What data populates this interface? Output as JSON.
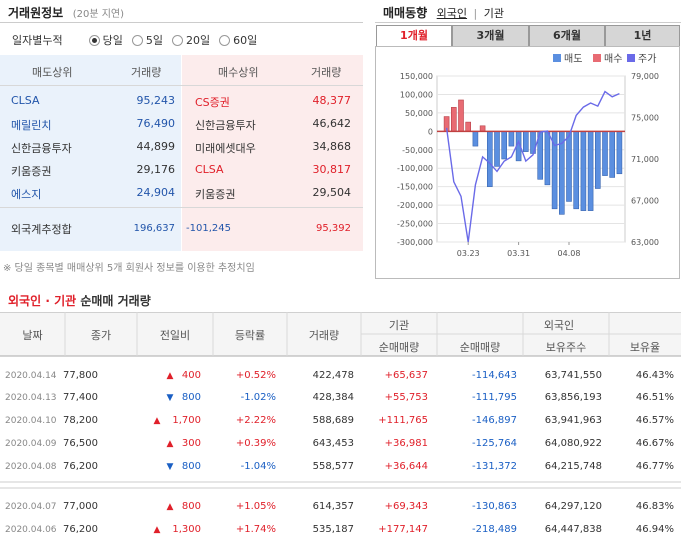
{
  "trade_info": {
    "title": "거래원정보",
    "delay": "(20분 지연)",
    "daily_label": "일자별누적",
    "periods": [
      "당일",
      "5일",
      "20일",
      "60일"
    ],
    "selected_period": 0,
    "headers": {
      "sell": "매도상위",
      "volume": "거래량",
      "buy": "매수상위",
      "volume2": "거래량"
    },
    "sell_top": [
      {
        "name": "CLSA",
        "volume": "95,243"
      },
      {
        "name": "메릴린치",
        "volume": "76,490"
      },
      {
        "name": "신한금융투자",
        "volume": "44,899"
      },
      {
        "name": "키움증권",
        "volume": "29,176"
      },
      {
        "name": "에스지",
        "volume": "24,904"
      }
    ],
    "buy_top": [
      {
        "name": "CS증권",
        "volume": "48,377"
      },
      {
        "name": "신한금융투자",
        "volume": "46,642"
      },
      {
        "name": "미래에셋대우",
        "volume": "34,868"
      },
      {
        "name": "CLSA",
        "volume": "30,817"
      },
      {
        "name": "키움증권",
        "volume": "29,504"
      }
    ],
    "foreign_total": {
      "label": "외국계추정합",
      "sell": "196,637",
      "diff": "-101,245",
      "buy": "95,392"
    },
    "note": "※ 당일 종목별 매매상위 5개 회원사 정보를 이용한 추정치임"
  },
  "trend": {
    "title": "매매동향",
    "links": [
      "외국인",
      "기관"
    ],
    "tabs": [
      "1개월",
      "3개월",
      "6개월",
      "1년"
    ],
    "active_tab": 0,
    "legend": [
      "매도",
      "매수",
      "주가"
    ],
    "colors": {
      "sell": "#5b8fe0",
      "buy": "#e86b73",
      "price": "#6a6ae8"
    }
  },
  "chart_data": {
    "type": "bar",
    "title": "",
    "y_left": {
      "min": -300000,
      "max": 150000,
      "ticks": [
        "150,000",
        "100,000",
        "50,000",
        "0",
        "-50,000",
        "-100,000",
        "-150,000",
        "-200,000",
        "-250,000",
        "-300,000"
      ]
    },
    "y_right": {
      "min": 63000,
      "max": 79000,
      "ticks": [
        "79,000",
        "75,000",
        "71,000",
        "67,000",
        "63,000"
      ]
    },
    "x_labels": [
      "03.23",
      "03.31",
      "04.08"
    ],
    "net_values": [
      40000,
      65000,
      85000,
      25000,
      -40000,
      15000,
      -150000,
      -95000,
      -75000,
      -40000,
      -80000,
      -55000,
      -60000,
      -130000,
      -145000,
      -210000,
      -225000,
      -190000,
      -210000,
      -215000,
      -215000,
      -155000,
      -120000,
      -125000,
      -115000
    ],
    "price_values": [
      74000,
      68800,
      67400,
      63000,
      68500,
      71200,
      70600,
      69800,
      70800,
      71200,
      72700,
      70800,
      71400,
      73600,
      73700,
      72300,
      72500,
      73200,
      75200,
      76000,
      76400,
      76100,
      77500,
      77000,
      77300
    ]
  },
  "net_trade": {
    "title_foreign": "외국인",
    "title_sep": "·",
    "title_inst": "기관",
    "title_rest": "순매매 거래량",
    "group_inst": "기관",
    "group_foreign": "외국인",
    "columns": [
      "날짜",
      "종가",
      "전일비",
      "등락률",
      "거래량",
      "순매매량",
      "순매매량",
      "보유주수",
      "보유율"
    ],
    "rows": [
      {
        "date": "2020.04.14",
        "close": "77,800",
        "dir": "up",
        "change": "400",
        "rate": "+0.52%",
        "volume": "422,478",
        "inst": "+65,637",
        "foreign": "-114,643",
        "hold": "63,741,550",
        "ratio": "46.43%"
      },
      {
        "date": "2020.04.13",
        "close": "77,400",
        "dir": "down",
        "change": "800",
        "rate": "-1.02%",
        "volume": "428,384",
        "inst": "+55,753",
        "foreign": "-111,795",
        "hold": "63,856,193",
        "ratio": "46.51%"
      },
      {
        "date": "2020.04.10",
        "close": "78,200",
        "dir": "up",
        "change": "1,700",
        "rate": "+2.22%",
        "volume": "588,689",
        "inst": "+111,765",
        "foreign": "-146,897",
        "hold": "63,941,963",
        "ratio": "46.57%"
      },
      {
        "date": "2020.04.09",
        "close": "76,500",
        "dir": "up",
        "change": "300",
        "rate": "+0.39%",
        "volume": "643,453",
        "inst": "+36,981",
        "foreign": "-125,764",
        "hold": "64,080,922",
        "ratio": "46.67%"
      },
      {
        "date": "2020.04.08",
        "close": "76,200",
        "dir": "down",
        "change": "800",
        "rate": "-1.04%",
        "volume": "558,577",
        "inst": "+36,644",
        "foreign": "-131,372",
        "hold": "64,215,748",
        "ratio": "46.77%"
      },
      {
        "date": "2020.04.07",
        "close": "77,000",
        "dir": "up",
        "change": "800",
        "rate": "+1.05%",
        "volume": "614,357",
        "inst": "+69,343",
        "foreign": "-130,863",
        "hold": "64,297,120",
        "ratio": "46.83%"
      },
      {
        "date": "2020.04.06",
        "close": "76,200",
        "dir": "up",
        "change": "1,300",
        "rate": "+1.74%",
        "volume": "535,187",
        "inst": "+177,147",
        "foreign": "-218,489",
        "hold": "64,447,838",
        "ratio": "46.94%"
      }
    ]
  }
}
